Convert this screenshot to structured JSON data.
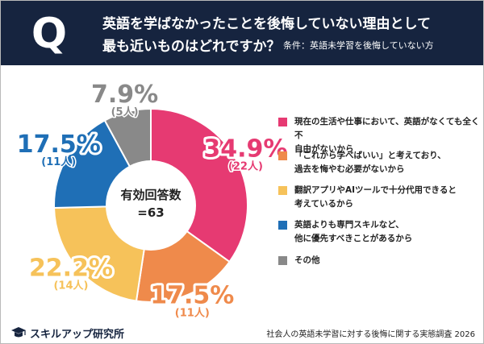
{
  "header": {
    "q_letter": "Q",
    "question_line1": "英語を学ばなかったことを後悔していない理由として",
    "question_line2": "最も近いものはどれですか？",
    "condition": "条件：英語未学習を後悔していない方"
  },
  "chart_data": {
    "type": "pie",
    "subtype": "donut",
    "title": "英語を学ばなかったことを後悔していない理由として最も近いものはどれですか？",
    "total": 63,
    "center_label_line1": "有効回答数",
    "center_label_line2": "=63",
    "slices": [
      {
        "label": "現在の生活や仕事において、英語がなくても全く不自由がないから",
        "percent": 34.9,
        "percent_label": "34.9%",
        "count_label": "(22人)",
        "color": "#e63a72"
      },
      {
        "label": "「これから学べばいい」と考えており、過去を悔やむ必要がないから",
        "percent": 17.5,
        "percent_label": "17.5%",
        "count_label": "(11人)",
        "color": "#ef8a4b"
      },
      {
        "label": "翻訳アプリやAIツールで十分代用できると考えているから",
        "percent": 22.2,
        "percent_label": "22.2%",
        "count_label": "(14人)",
        "color": "#f6c25a"
      },
      {
        "label": "英語よりも専門スキルなど、他に優先すべきことがあるから",
        "percent": 17.5,
        "percent_label": "17.5%",
        "count_label": "(11人)",
        "color": "#1f6fb6"
      },
      {
        "label": "その他",
        "percent": 7.9,
        "percent_label": "7.9%",
        "count_label": "(5人)",
        "color": "#898989"
      }
    ]
  },
  "legend": [
    {
      "line1": "現在の生活や仕事において、英語がなくても全く不",
      "line2": "自由がないから"
    },
    {
      "line1": "「これから学べばいい」と考えており、",
      "line2": "過去を悔やむ必要がないから"
    },
    {
      "line1": "翻訳アプリやAIツールで十分代用できると",
      "line2": "考えているから"
    },
    {
      "line1": "英語よりも専門スキルなど、",
      "line2": "他に優先すべきことがあるから"
    },
    {
      "line1": "その他",
      "line2": ""
    }
  ],
  "footer": {
    "brand": "スキルアップ研究所",
    "source": "社会人の英語未学習に対する後悔に関する実態調査 2026"
  }
}
